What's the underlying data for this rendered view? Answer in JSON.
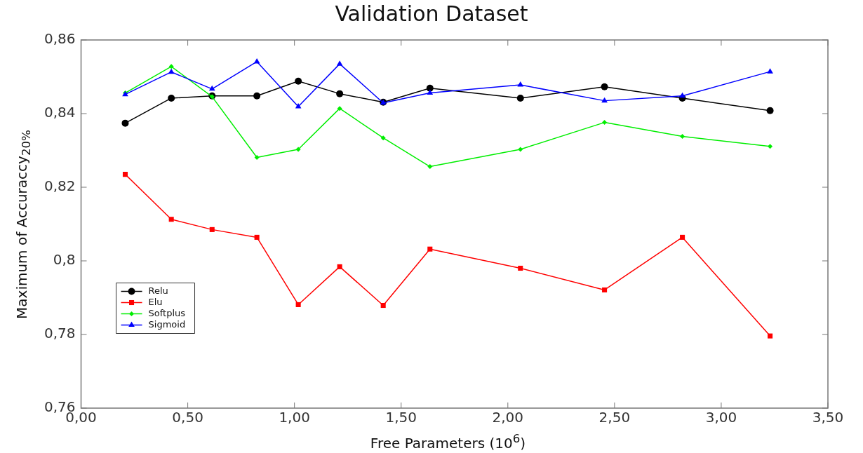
{
  "chart_data": {
    "type": "line",
    "title": "Validation Dataset",
    "xlabel": "Free Parameters (10$^{6}$)",
    "ylabel": "Maximum of Accuraccy$_{20%}$",
    "x": [
      0.207,
      0.423,
      0.614,
      0.824,
      1.018,
      1.212,
      1.416,
      1.635,
      2.059,
      2.453,
      2.818,
      3.229
    ],
    "series": [
      {
        "name": "Relu",
        "color": "#000000",
        "marker": "circle",
        "values": [
          0.8374,
          0.8442,
          0.8448,
          0.8448,
          0.8488,
          0.8454,
          0.8431,
          0.8469,
          0.8442,
          0.8473,
          0.8442,
          0.8408
        ]
      },
      {
        "name": "Elu",
        "color": "#ff0000",
        "marker": "square",
        "values": [
          0.8235,
          0.8113,
          0.8085,
          0.8064,
          0.7881,
          0.7984,
          0.7879,
          0.8032,
          0.798,
          0.7921,
          0.8064,
          0.7796
        ]
      },
      {
        "name": "Softplus",
        "color": "#00ee00",
        "marker": "diamond",
        "values": [
          0.8456,
          0.8528,
          0.8446,
          0.8281,
          0.8303,
          0.8414,
          0.8334,
          0.8256,
          0.8303,
          0.8376,
          0.8338,
          0.8311
        ]
      },
      {
        "name": "Sigmoid",
        "color": "#0000ff",
        "marker": "triangle",
        "values": [
          0.8452,
          0.8513,
          0.8467,
          0.8541,
          0.8419,
          0.8535,
          0.8429,
          0.8456,
          0.8478,
          0.8435,
          0.8448,
          0.8514
        ]
      }
    ],
    "xlim": [
      0,
      3.5
    ],
    "xticks": [
      {
        "value": 0,
        "label": "0,00"
      },
      {
        "value": 0.5,
        "label": "0,50"
      },
      {
        "value": 1,
        "label": "1,00"
      },
      {
        "value": 1.5,
        "label": "1,50"
      },
      {
        "value": 2,
        "label": "2,00"
      },
      {
        "value": 2.5,
        "label": "2,50"
      },
      {
        "value": 3,
        "label": "3,00"
      },
      {
        "value": 3.5,
        "label": "3,50"
      }
    ],
    "ylim": [
      0.76,
      0.86
    ],
    "yticks": [
      {
        "value": 0.76,
        "label": "0,76"
      },
      {
        "value": 0.78,
        "label": "0,78"
      },
      {
        "value": 0.8,
        "label": "0,8"
      },
      {
        "value": 0.82,
        "label": "0,82"
      },
      {
        "value": 0.84,
        "label": "0,84"
      },
      {
        "value": 0.86,
        "label": "0,86"
      }
    ],
    "grid": false,
    "legend": "bottom left",
    "line_style": "solid"
  }
}
